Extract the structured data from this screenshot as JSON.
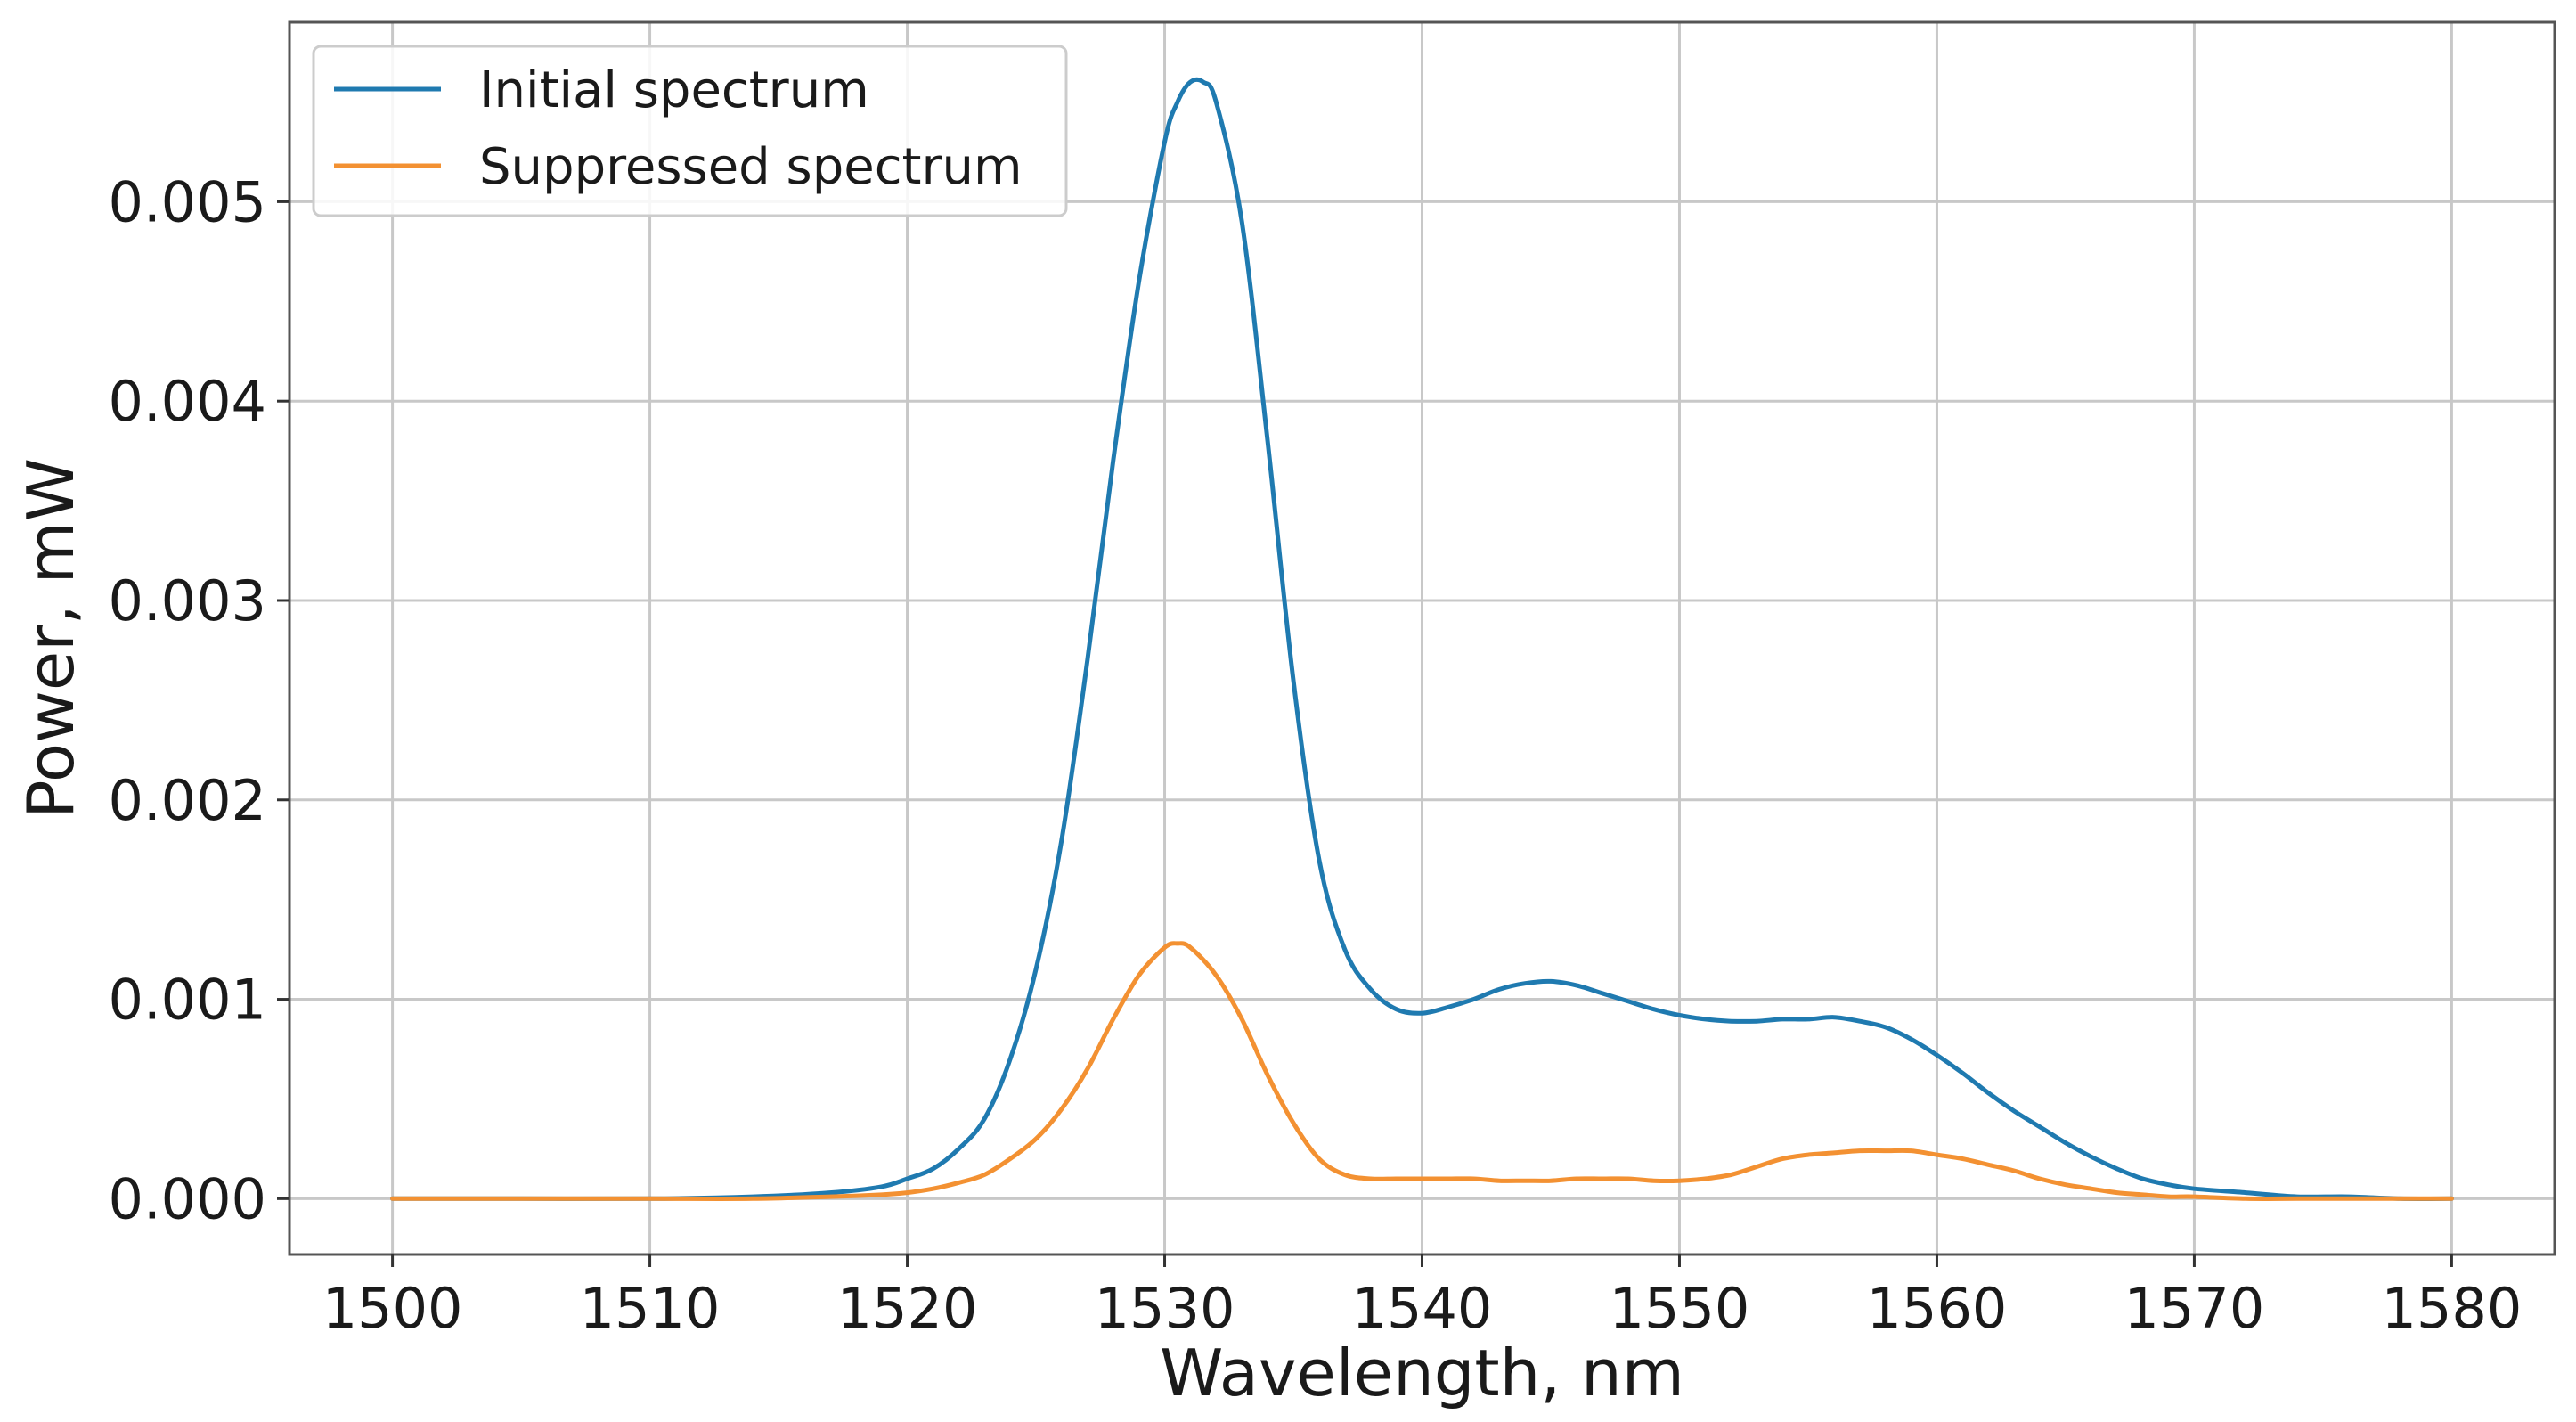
{
  "chart_data": {
    "type": "line",
    "title": "",
    "xlabel": "Wavelength, nm",
    "ylabel": "Power, mW",
    "xlim": [
      1496,
      1584
    ],
    "ylim": [
      -0.00028,
      0.0059
    ],
    "grid": true,
    "legend_position": "top-left",
    "xticks": [
      1500,
      1510,
      1520,
      1530,
      1540,
      1550,
      1560,
      1570,
      1580
    ],
    "yticks": [
      0.0,
      0.001,
      0.002,
      0.003,
      0.004,
      0.005
    ],
    "xtick_labels": [
      "1500",
      "1510",
      "1520",
      "1530",
      "1540",
      "1550",
      "1560",
      "1570",
      "1580"
    ],
    "ytick_labels": [
      "0.000",
      "0.001",
      "0.002",
      "0.003",
      "0.004",
      "0.005"
    ],
    "series": [
      {
        "name": "Initial spectrum",
        "color": "#1f7ab0",
        "x": [
          1500,
          1505,
          1510,
          1514,
          1517,
          1519,
          1520,
          1521,
          1522,
          1523,
          1524,
          1525,
          1526,
          1527,
          1528,
          1529,
          1530,
          1530.5,
          1531,
          1531.5,
          1532,
          1533,
          1534,
          1535,
          1536,
          1537,
          1538,
          1539,
          1540,
          1541,
          1542,
          1543,
          1544,
          1545,
          1546,
          1547,
          1548,
          1549,
          1550,
          1551,
          1552,
          1553,
          1554,
          1555,
          1556,
          1557,
          1558,
          1559,
          1560,
          1561,
          1562,
          1563,
          1564,
          1565,
          1566,
          1567,
          1568,
          1569,
          1570,
          1572,
          1574,
          1576,
          1578,
          1580
        ],
        "values": [
          0.0,
          0.0,
          0.0,
          1e-05,
          3e-05,
          6e-05,
          0.0001,
          0.00015,
          0.00025,
          0.0004,
          0.0007,
          0.00115,
          0.0018,
          0.0027,
          0.0037,
          0.0046,
          0.0053,
          0.0055,
          0.0056,
          0.0056,
          0.0055,
          0.0049,
          0.0038,
          0.0026,
          0.0017,
          0.00125,
          0.00105,
          0.00095,
          0.00093,
          0.00096,
          0.001,
          0.00105,
          0.00108,
          0.00109,
          0.00107,
          0.00103,
          0.00099,
          0.00095,
          0.00092,
          0.0009,
          0.00089,
          0.00089,
          0.0009,
          0.0009,
          0.00091,
          0.00089,
          0.00086,
          0.0008,
          0.00072,
          0.00063,
          0.00053,
          0.00044,
          0.00036,
          0.00028,
          0.00021,
          0.00015,
          0.0001,
          7e-05,
          5e-05,
          3e-05,
          1e-05,
          1e-05,
          0.0,
          0.0
        ]
      },
      {
        "name": "Suppressed spectrum",
        "color": "#f39132",
        "x": [
          1500,
          1505,
          1510,
          1514,
          1517,
          1519,
          1520,
          1521,
          1522,
          1523,
          1524,
          1525,
          1526,
          1527,
          1528,
          1529,
          1530,
          1530.5,
          1531,
          1532,
          1533,
          1534,
          1535,
          1536,
          1537,
          1538,
          1539,
          1540,
          1541,
          1542,
          1543,
          1544,
          1545,
          1546,
          1547,
          1548,
          1549,
          1550,
          1551,
          1552,
          1553,
          1554,
          1555,
          1556,
          1557,
          1558,
          1559,
          1560,
          1561,
          1562,
          1563,
          1564,
          1565,
          1566,
          1567,
          1568,
          1569,
          1570,
          1572,
          1574,
          1576,
          1578,
          1580
        ],
        "values": [
          0.0,
          0.0,
          0.0,
          0.0,
          1e-05,
          2e-05,
          3e-05,
          5e-05,
          8e-05,
          0.00012,
          0.0002,
          0.0003,
          0.00045,
          0.00065,
          0.0009,
          0.00112,
          0.00126,
          0.00128,
          0.00126,
          0.00112,
          0.0009,
          0.00062,
          0.00038,
          0.0002,
          0.00012,
          0.0001,
          0.0001,
          0.0001,
          0.0001,
          0.0001,
          9e-05,
          9e-05,
          9e-05,
          0.0001,
          0.0001,
          0.0001,
          9e-05,
          9e-05,
          0.0001,
          0.00012,
          0.00016,
          0.0002,
          0.00022,
          0.00023,
          0.00024,
          0.00024,
          0.00024,
          0.00022,
          0.0002,
          0.00017,
          0.00014,
          0.0001,
          7e-05,
          5e-05,
          3e-05,
          2e-05,
          1e-05,
          1e-05,
          0.0,
          0.0,
          0.0,
          0.0,
          0.0
        ]
      }
    ]
  }
}
